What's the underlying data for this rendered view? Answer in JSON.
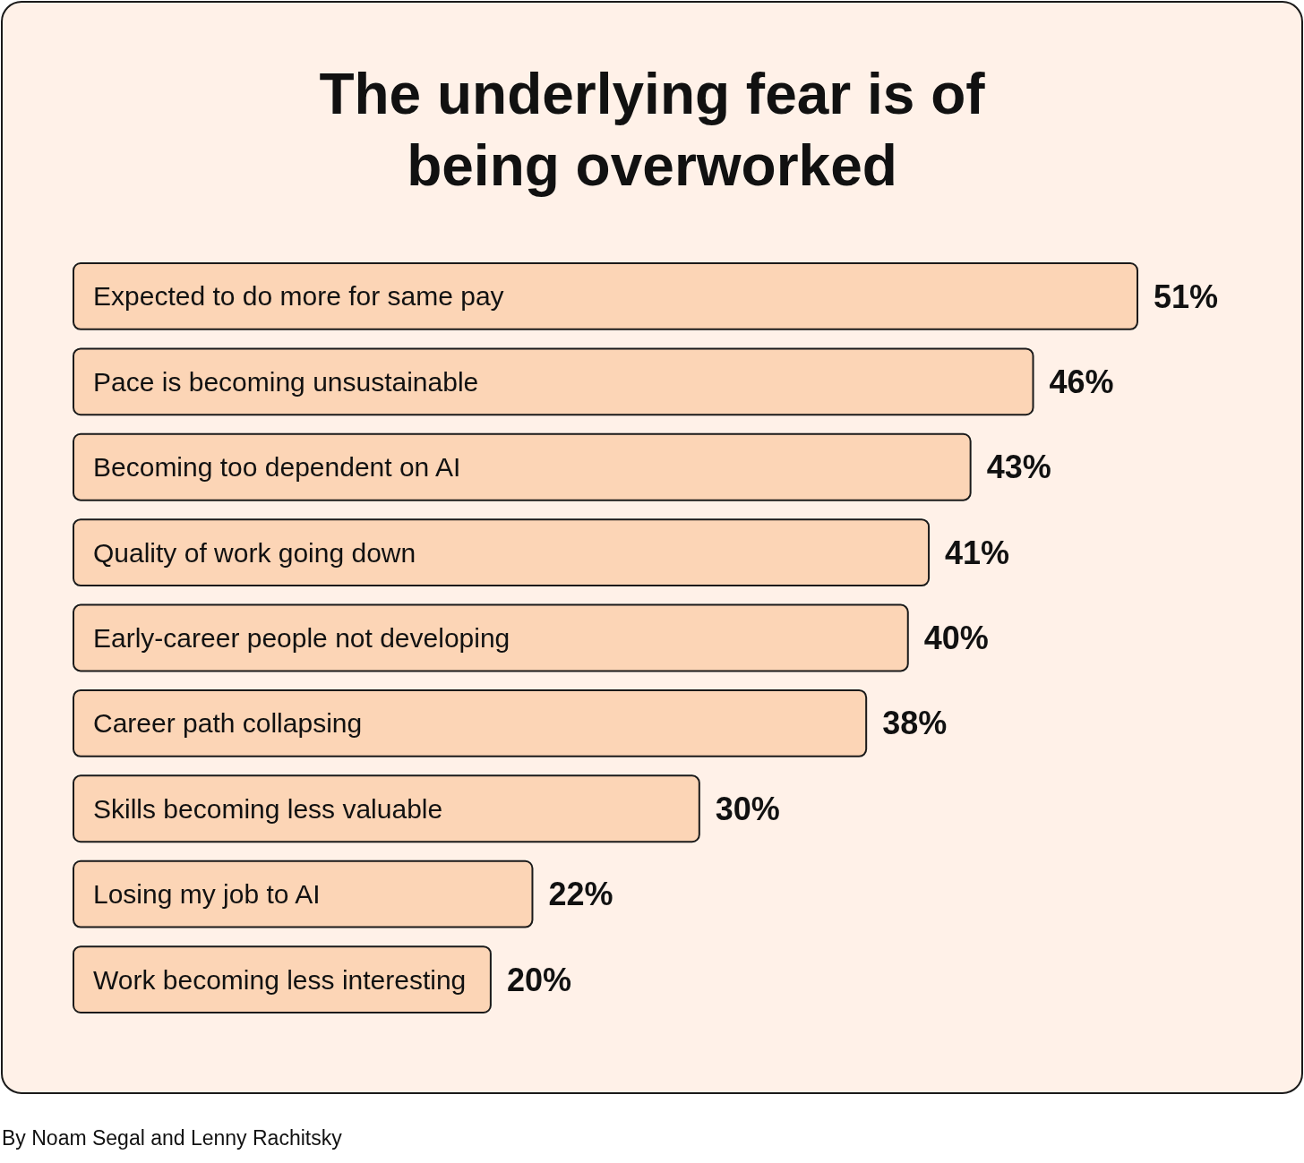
{
  "chart_data": {
    "type": "bar",
    "orientation": "horizontal",
    "title": "The underlying fear is of being overworked",
    "categories": [
      "Expected to do more for same pay",
      "Pace is becoming unsustainable",
      "Becoming too dependent on AI",
      "Quality of work going down",
      "Early-career people not developing",
      "Career path collapsing",
      "Skills becoming less valuable",
      "Losing my job to AI",
      "Work becoming less interesting"
    ],
    "values": [
      51,
      46,
      43,
      41,
      40,
      38,
      30,
      22,
      20
    ],
    "value_labels": [
      "51%",
      "46%",
      "43%",
      "41%",
      "40%",
      "38%",
      "30%",
      "22%",
      "20%"
    ],
    "color": "#fcd5b6",
    "annotations": [
      "By Noam Segal and Lenny Rachitsky"
    ]
  }
}
